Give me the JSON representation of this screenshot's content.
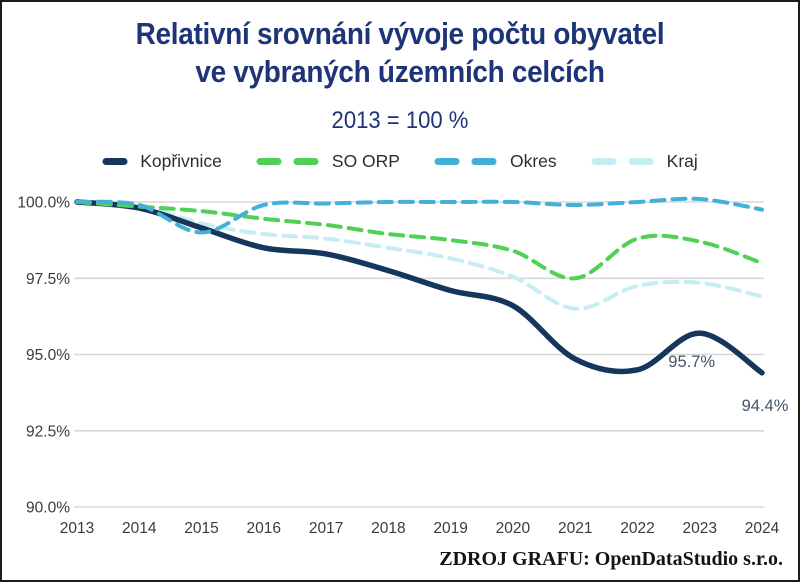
{
  "title": {
    "line1": "Relativní srovnání vývoje počtu obyvatel",
    "line2": "ve vybraných územních celcích",
    "subtitle": "2013 = 100 %"
  },
  "footer": {
    "source": "ZDROJ GRAFU: OpenDataStudio s.r.o."
  },
  "colors": {
    "title_navy": "#1d3478",
    "grid": "#d8d8d8",
    "axis_text": "#3b3b3b",
    "legend_text": "#2d2d2d",
    "annotation": "#44546a"
  },
  "chart_data": {
    "type": "line",
    "x": [
      2013,
      2014,
      2015,
      2016,
      2017,
      2018,
      2019,
      2020,
      2021,
      2022,
      2023,
      2024
    ],
    "x_tick_labels": [
      "2013",
      "2014",
      "2015",
      "2016",
      "2017",
      "2018",
      "2019",
      "2020",
      "2021",
      "2022",
      "2023",
      "2024"
    ],
    "ylim": [
      90,
      100
    ],
    "y_ticks": [
      {
        "value": 100.0,
        "label": "100.0%"
      },
      {
        "value": 97.5,
        "label": "97.5%"
      },
      {
        "value": 95.0,
        "label": "95.0%"
      },
      {
        "value": 92.5,
        "label": "92.5%"
      },
      {
        "value": 90.0,
        "label": "90.0%"
      }
    ],
    "grid": "horizontal",
    "legend_position": "top",
    "series": [
      {
        "name": "Kopřivnice",
        "color": "#17365d",
        "style": "solid",
        "values": [
          100.0,
          99.8,
          99.15,
          98.5,
          98.3,
          97.75,
          97.1,
          96.6,
          94.85,
          94.5,
          95.7,
          94.4
        ]
      },
      {
        "name": "SO ORP",
        "color": "#50d156",
        "style": "dashed",
        "values": [
          100.0,
          99.85,
          99.7,
          99.45,
          99.25,
          98.95,
          98.75,
          98.4,
          97.5,
          98.8,
          98.7,
          98.0
        ]
      },
      {
        "name": "Okres",
        "color": "#43b0d8",
        "style": "dashed",
        "values": [
          100.0,
          99.9,
          99.0,
          99.9,
          99.95,
          100.0,
          100.0,
          100.0,
          99.9,
          100.0,
          100.1,
          99.75
        ]
      },
      {
        "name": "Kraj",
        "color": "#c6edf2",
        "style": "dashed",
        "values": [
          100.0,
          99.9,
          99.3,
          98.95,
          98.8,
          98.5,
          98.15,
          97.55,
          96.5,
          97.25,
          97.35,
          96.9
        ]
      }
    ],
    "annotations": [
      {
        "text": "95.7%",
        "year": 2023,
        "value": 95.7
      },
      {
        "text": "94.4%",
        "year": 2024,
        "value": 94.4
      }
    ]
  }
}
